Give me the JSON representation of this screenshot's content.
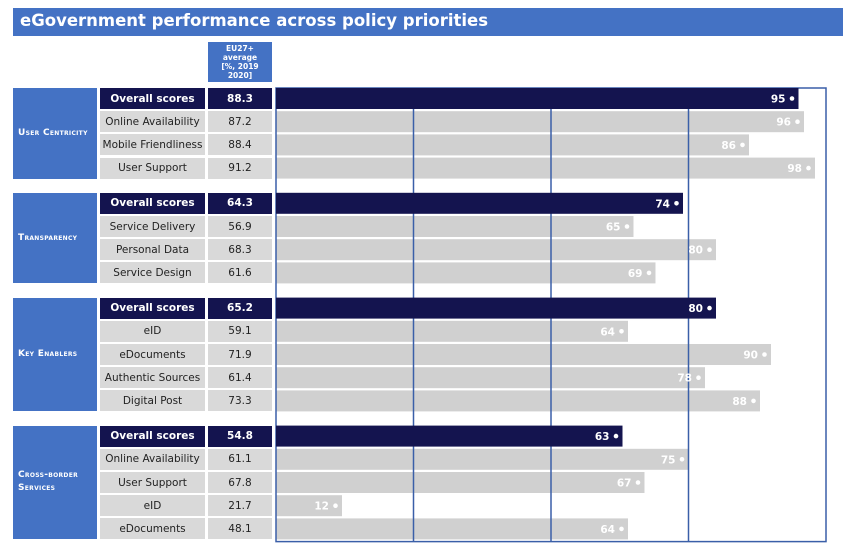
{
  "title": "eGovernment performance across policy priorities",
  "avg_header": [
    "EU27+",
    "average",
    "[%, 2019 2020]"
  ],
  "colors": {
    "header": "#4472c4",
    "overall_bar": "#14144f",
    "sub_bar": "#d0d0d0",
    "label_bg": "#d9d9d9"
  },
  "chart_data": {
    "type": "bar",
    "orientation": "horizontal",
    "xlim": [
      0,
      100
    ],
    "gridlines_at": [
      25,
      50,
      75
    ],
    "groups": [
      {
        "name": "User Centricity",
        "rows": [
          {
            "label": "Overall scores",
            "average": "88.3",
            "value": 95,
            "overall": true
          },
          {
            "label": "Online Availability",
            "average": "87.2",
            "value": 96
          },
          {
            "label": "Mobile Friendliness",
            "average": "88.4",
            "value": 86
          },
          {
            "label": "User Support",
            "average": "91.2",
            "value": 98
          }
        ]
      },
      {
        "name": "Transparency",
        "rows": [
          {
            "label": "Overall scores",
            "average": "64.3",
            "value": 74,
            "overall": true
          },
          {
            "label": "Service Delivery",
            "average": "56.9",
            "value": 65
          },
          {
            "label": "Personal Data",
            "average": "68.3",
            "value": 80
          },
          {
            "label": "Service Design",
            "average": "61.6",
            "value": 69
          }
        ]
      },
      {
        "name": "Key Enablers",
        "rows": [
          {
            "label": "Overall scores",
            "average": "65.2",
            "value": 80,
            "overall": true
          },
          {
            "label": "eID",
            "average": "59.1",
            "value": 64
          },
          {
            "label": "eDocuments",
            "average": "71.9",
            "value": 90
          },
          {
            "label": "Authentic Sources",
            "average": "61.4",
            "value": 78
          },
          {
            "label": "Digital Post",
            "average": "73.3",
            "value": 88
          }
        ]
      },
      {
        "name": "Cross-border Services",
        "rows": [
          {
            "label": "Overall scores",
            "average": "54.8",
            "value": 63,
            "overall": true
          },
          {
            "label": "Online Availability",
            "average": "61.1",
            "value": 75
          },
          {
            "label": "User Support",
            "average": "67.8",
            "value": 67
          },
          {
            "label": "eID",
            "average": "21.7",
            "value": 12
          },
          {
            "label": "eDocuments",
            "average": "48.1",
            "value": 64
          }
        ]
      }
    ]
  }
}
